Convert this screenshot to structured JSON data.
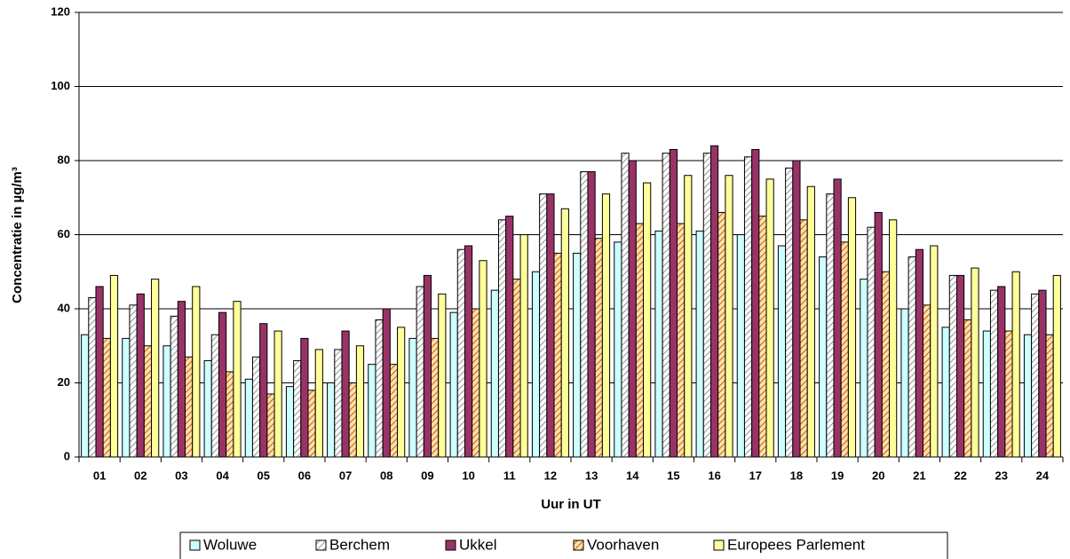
{
  "chart_data": {
    "type": "bar",
    "x_label": "Uur in UT",
    "y_label": "Concentratie in µg/m³",
    "categories": [
      "01",
      "02",
      "03",
      "04",
      "05",
      "06",
      "07",
      "08",
      "09",
      "10",
      "11",
      "12",
      "13",
      "14",
      "15",
      "16",
      "17",
      "18",
      "19",
      "20",
      "21",
      "22",
      "23",
      "24"
    ],
    "series": [
      {
        "name": "Woluwe",
        "color": "#ccffff",
        "hatch": false,
        "values": [
          33,
          32,
          30,
          26,
          21,
          19,
          20,
          25,
          32,
          39,
          45,
          50,
          55,
          58,
          61,
          61,
          60,
          57,
          54,
          48,
          40,
          35,
          34,
          33
        ]
      },
      {
        "name": "Berchem",
        "color": "#999999",
        "hatch": true,
        "values": [
          43,
          41,
          38,
          33,
          27,
          26,
          29,
          37,
          46,
          56,
          64,
          71,
          77,
          82,
          82,
          82,
          81,
          78,
          71,
          62,
          54,
          49,
          45,
          44
        ]
      },
      {
        "name": "Ukkel",
        "color": "#993366",
        "hatch": false,
        "values": [
          46,
          44,
          42,
          39,
          36,
          32,
          34,
          40,
          49,
          57,
          65,
          71,
          77,
          80,
          83,
          84,
          83,
          80,
          75,
          66,
          56,
          49,
          46,
          45
        ]
      },
      {
        "name": "Voorhaven",
        "color": "#cc6600",
        "hatch": true,
        "values": [
          32,
          30,
          27,
          23,
          17,
          18,
          20,
          25,
          32,
          40,
          48,
          55,
          59,
          63,
          63,
          66,
          65,
          64,
          58,
          50,
          41,
          37,
          34,
          33
        ]
      },
      {
        "name": "Europees Parlement",
        "color": "#ffff99",
        "hatch": false,
        "values": [
          49,
          48,
          46,
          42,
          34,
          29,
          30,
          35,
          44,
          53,
          60,
          67,
          71,
          74,
          76,
          76,
          75,
          73,
          70,
          64,
          57,
          51,
          50,
          49
        ]
      }
    ],
    "ylim": [
      0,
      120
    ],
    "yticks": [
      0,
      20,
      40,
      60,
      80,
      100,
      120
    ],
    "grid": true,
    "legend": "bottom"
  }
}
